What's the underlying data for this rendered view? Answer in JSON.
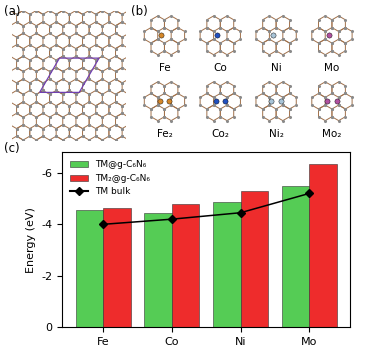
{
  "panels": {
    "a": "(a)",
    "b": "(b)",
    "c": "(c)"
  },
  "structures": {
    "single": [
      "Fe",
      "Co",
      "Ni",
      "Mo"
    ],
    "double": [
      "Fe₂",
      "Co₂",
      "Ni₂",
      "Mo₂"
    ]
  },
  "chart_data": {
    "type": "bar",
    "categories": [
      "Fe",
      "Co",
      "Ni",
      "Mo"
    ],
    "ylabel": "Energy (eV)",
    "ylim": [
      0,
      -6.8
    ],
    "yticks": [
      0,
      -2,
      -4,
      -6
    ],
    "legend": "upper left",
    "series": [
      {
        "name": "TM@g-C₆N₆",
        "type": "bar",
        "color": "#55cc55",
        "values": [
          -4.55,
          -4.45,
          -4.85,
          -5.5
        ]
      },
      {
        "name": "TM₂@g-C₆N₆",
        "type": "bar",
        "color": "#ee2c2c",
        "values": [
          -4.62,
          -4.78,
          -5.3,
          -6.35
        ]
      },
      {
        "name": "TM bulk",
        "type": "line",
        "color": "#000000",
        "marker": "diamond",
        "line_style": "solid",
        "values": [
          -4.0,
          -4.2,
          -4.45,
          -5.2
        ]
      }
    ]
  }
}
